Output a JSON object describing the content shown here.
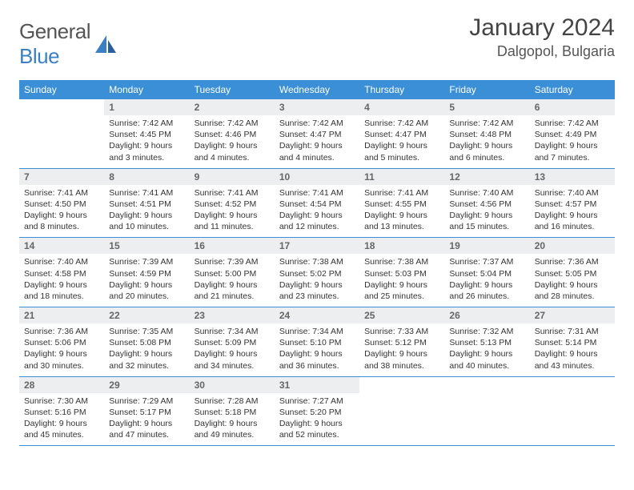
{
  "logo": {
    "text1": "General",
    "text2": "Blue"
  },
  "title": "January 2024",
  "location": "Dalgopol, Bulgaria",
  "colors": {
    "header_bg": "#3b8fd6",
    "header_text": "#ffffff",
    "daynum_bg": "#eceef0",
    "border": "#3b8fd6",
    "logo_blue": "#3b7fc4",
    "text": "#333333"
  },
  "weekdays": [
    "Sunday",
    "Monday",
    "Tuesday",
    "Wednesday",
    "Thursday",
    "Friday",
    "Saturday"
  ],
  "weeks": [
    [
      {
        "n": "",
        "sr": "",
        "ss": "",
        "dl": ""
      },
      {
        "n": "1",
        "sr": "Sunrise: 7:42 AM",
        "ss": "Sunset: 4:45 PM",
        "dl": "Daylight: 9 hours and 3 minutes."
      },
      {
        "n": "2",
        "sr": "Sunrise: 7:42 AM",
        "ss": "Sunset: 4:46 PM",
        "dl": "Daylight: 9 hours and 4 minutes."
      },
      {
        "n": "3",
        "sr": "Sunrise: 7:42 AM",
        "ss": "Sunset: 4:47 PM",
        "dl": "Daylight: 9 hours and 4 minutes."
      },
      {
        "n": "4",
        "sr": "Sunrise: 7:42 AM",
        "ss": "Sunset: 4:47 PM",
        "dl": "Daylight: 9 hours and 5 minutes."
      },
      {
        "n": "5",
        "sr": "Sunrise: 7:42 AM",
        "ss": "Sunset: 4:48 PM",
        "dl": "Daylight: 9 hours and 6 minutes."
      },
      {
        "n": "6",
        "sr": "Sunrise: 7:42 AM",
        "ss": "Sunset: 4:49 PM",
        "dl": "Daylight: 9 hours and 7 minutes."
      }
    ],
    [
      {
        "n": "7",
        "sr": "Sunrise: 7:41 AM",
        "ss": "Sunset: 4:50 PM",
        "dl": "Daylight: 9 hours and 8 minutes."
      },
      {
        "n": "8",
        "sr": "Sunrise: 7:41 AM",
        "ss": "Sunset: 4:51 PM",
        "dl": "Daylight: 9 hours and 10 minutes."
      },
      {
        "n": "9",
        "sr": "Sunrise: 7:41 AM",
        "ss": "Sunset: 4:52 PM",
        "dl": "Daylight: 9 hours and 11 minutes."
      },
      {
        "n": "10",
        "sr": "Sunrise: 7:41 AM",
        "ss": "Sunset: 4:54 PM",
        "dl": "Daylight: 9 hours and 12 minutes."
      },
      {
        "n": "11",
        "sr": "Sunrise: 7:41 AM",
        "ss": "Sunset: 4:55 PM",
        "dl": "Daylight: 9 hours and 13 minutes."
      },
      {
        "n": "12",
        "sr": "Sunrise: 7:40 AM",
        "ss": "Sunset: 4:56 PM",
        "dl": "Daylight: 9 hours and 15 minutes."
      },
      {
        "n": "13",
        "sr": "Sunrise: 7:40 AM",
        "ss": "Sunset: 4:57 PM",
        "dl": "Daylight: 9 hours and 16 minutes."
      }
    ],
    [
      {
        "n": "14",
        "sr": "Sunrise: 7:40 AM",
        "ss": "Sunset: 4:58 PM",
        "dl": "Daylight: 9 hours and 18 minutes."
      },
      {
        "n": "15",
        "sr": "Sunrise: 7:39 AM",
        "ss": "Sunset: 4:59 PM",
        "dl": "Daylight: 9 hours and 20 minutes."
      },
      {
        "n": "16",
        "sr": "Sunrise: 7:39 AM",
        "ss": "Sunset: 5:00 PM",
        "dl": "Daylight: 9 hours and 21 minutes."
      },
      {
        "n": "17",
        "sr": "Sunrise: 7:38 AM",
        "ss": "Sunset: 5:02 PM",
        "dl": "Daylight: 9 hours and 23 minutes."
      },
      {
        "n": "18",
        "sr": "Sunrise: 7:38 AM",
        "ss": "Sunset: 5:03 PM",
        "dl": "Daylight: 9 hours and 25 minutes."
      },
      {
        "n": "19",
        "sr": "Sunrise: 7:37 AM",
        "ss": "Sunset: 5:04 PM",
        "dl": "Daylight: 9 hours and 26 minutes."
      },
      {
        "n": "20",
        "sr": "Sunrise: 7:36 AM",
        "ss": "Sunset: 5:05 PM",
        "dl": "Daylight: 9 hours and 28 minutes."
      }
    ],
    [
      {
        "n": "21",
        "sr": "Sunrise: 7:36 AM",
        "ss": "Sunset: 5:06 PM",
        "dl": "Daylight: 9 hours and 30 minutes."
      },
      {
        "n": "22",
        "sr": "Sunrise: 7:35 AM",
        "ss": "Sunset: 5:08 PM",
        "dl": "Daylight: 9 hours and 32 minutes."
      },
      {
        "n": "23",
        "sr": "Sunrise: 7:34 AM",
        "ss": "Sunset: 5:09 PM",
        "dl": "Daylight: 9 hours and 34 minutes."
      },
      {
        "n": "24",
        "sr": "Sunrise: 7:34 AM",
        "ss": "Sunset: 5:10 PM",
        "dl": "Daylight: 9 hours and 36 minutes."
      },
      {
        "n": "25",
        "sr": "Sunrise: 7:33 AM",
        "ss": "Sunset: 5:12 PM",
        "dl": "Daylight: 9 hours and 38 minutes."
      },
      {
        "n": "26",
        "sr": "Sunrise: 7:32 AM",
        "ss": "Sunset: 5:13 PM",
        "dl": "Daylight: 9 hours and 40 minutes."
      },
      {
        "n": "27",
        "sr": "Sunrise: 7:31 AM",
        "ss": "Sunset: 5:14 PM",
        "dl": "Daylight: 9 hours and 43 minutes."
      }
    ],
    [
      {
        "n": "28",
        "sr": "Sunrise: 7:30 AM",
        "ss": "Sunset: 5:16 PM",
        "dl": "Daylight: 9 hours and 45 minutes."
      },
      {
        "n": "29",
        "sr": "Sunrise: 7:29 AM",
        "ss": "Sunset: 5:17 PM",
        "dl": "Daylight: 9 hours and 47 minutes."
      },
      {
        "n": "30",
        "sr": "Sunrise: 7:28 AM",
        "ss": "Sunset: 5:18 PM",
        "dl": "Daylight: 9 hours and 49 minutes."
      },
      {
        "n": "31",
        "sr": "Sunrise: 7:27 AM",
        "ss": "Sunset: 5:20 PM",
        "dl": "Daylight: 9 hours and 52 minutes."
      },
      {
        "n": "",
        "sr": "",
        "ss": "",
        "dl": ""
      },
      {
        "n": "",
        "sr": "",
        "ss": "",
        "dl": ""
      },
      {
        "n": "",
        "sr": "",
        "ss": "",
        "dl": ""
      }
    ]
  ]
}
